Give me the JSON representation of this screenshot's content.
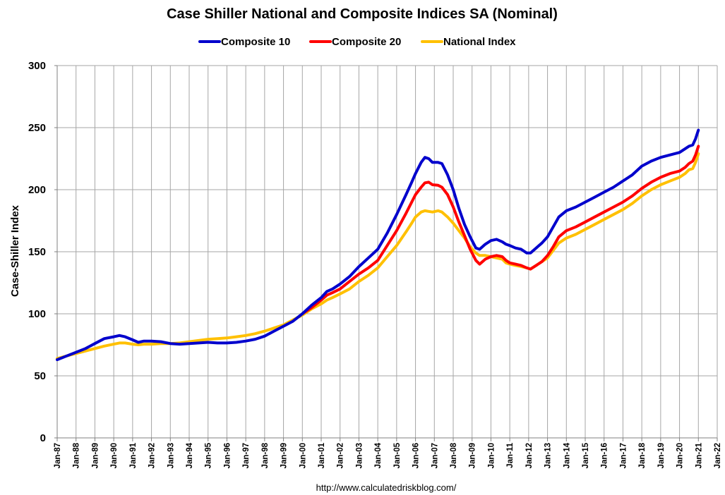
{
  "chart_data": {
    "type": "line",
    "title": "Case Shiller National and Composite Indices SA (Nominal)",
    "ylabel": "Case-Shiller Index",
    "xlabel": "",
    "source_text": "http://www.calculatedriskblog.com/",
    "ylim": [
      0,
      300
    ],
    "yticks": [
      0,
      50,
      100,
      150,
      200,
      250,
      300
    ],
    "xlim": [
      1987,
      2022
    ],
    "xticks": [
      "Jan-87",
      "Jan-88",
      "Jan-89",
      "Jan-90",
      "Jan-91",
      "Jan-92",
      "Jan-93",
      "Jan-94",
      "Jan-95",
      "Jan-96",
      "Jan-97",
      "Jan-98",
      "Jan-99",
      "Jan-00",
      "Jan-01",
      "Jan-02",
      "Jan-03",
      "Jan-04",
      "Jan-05",
      "Jan-06",
      "Jan-07",
      "Jan-08",
      "Jan-09",
      "Jan-10",
      "Jan-11",
      "Jan-12",
      "Jan-13",
      "Jan-14",
      "Jan-15",
      "Jan-16",
      "Jan-17",
      "Jan-18",
      "Jan-19",
      "Jan-20",
      "Jan-21",
      "Jan-22"
    ],
    "grid": true,
    "legend_position": "top-center",
    "series": [
      {
        "name": "Composite 10",
        "color": "#0000cc",
        "points": [
          [
            1987.0,
            63
          ],
          [
            1987.5,
            66
          ],
          [
            1988.0,
            69
          ],
          [
            1988.5,
            72
          ],
          [
            1989.0,
            76
          ],
          [
            1989.5,
            80
          ],
          [
            1990.0,
            81.5
          ],
          [
            1990.3,
            82.5
          ],
          [
            1990.6,
            81.5
          ],
          [
            1991.0,
            79
          ],
          [
            1991.3,
            77
          ],
          [
            1991.6,
            78
          ],
          [
            1992.0,
            78
          ],
          [
            1992.5,
            77.5
          ],
          [
            1993.0,
            76
          ],
          [
            1993.5,
            75.5
          ],
          [
            1994.0,
            76
          ],
          [
            1994.5,
            76.5
          ],
          [
            1995.0,
            77
          ],
          [
            1995.5,
            76.5
          ],
          [
            1996.0,
            76.5
          ],
          [
            1996.5,
            77
          ],
          [
            1997.0,
            78
          ],
          [
            1997.5,
            79.5
          ],
          [
            1998.0,
            82
          ],
          [
            1998.5,
            86
          ],
          [
            1999.0,
            90
          ],
          [
            1999.5,
            94
          ],
          [
            2000.0,
            100
          ],
          [
            2000.5,
            107
          ],
          [
            2001.0,
            113
          ],
          [
            2001.3,
            118
          ],
          [
            2001.6,
            120
          ],
          [
            2002.0,
            124
          ],
          [
            2002.5,
            130
          ],
          [
            2003.0,
            138
          ],
          [
            2003.5,
            145
          ],
          [
            2004.0,
            152
          ],
          [
            2004.5,
            165
          ],
          [
            2005.0,
            180
          ],
          [
            2005.5,
            196
          ],
          [
            2005.8,
            206
          ],
          [
            2006.0,
            213
          ],
          [
            2006.3,
            222
          ],
          [
            2006.5,
            226
          ],
          [
            2006.7,
            225
          ],
          [
            2006.9,
            222
          ],
          [
            2007.2,
            222
          ],
          [
            2007.4,
            221
          ],
          [
            2007.7,
            212
          ],
          [
            2008.0,
            200
          ],
          [
            2008.3,
            185
          ],
          [
            2008.6,
            172
          ],
          [
            2008.9,
            162
          ],
          [
            2009.2,
            153
          ],
          [
            2009.4,
            152
          ],
          [
            2009.7,
            156
          ],
          [
            2010.0,
            159
          ],
          [
            2010.3,
            160
          ],
          [
            2010.6,
            158
          ],
          [
            2010.8,
            156
          ],
          [
            2011.0,
            155
          ],
          [
            2011.3,
            153
          ],
          [
            2011.6,
            152
          ],
          [
            2011.9,
            149
          ],
          [
            2012.1,
            149
          ],
          [
            2012.4,
            153
          ],
          [
            2012.7,
            157
          ],
          [
            2013.0,
            162
          ],
          [
            2013.3,
            170
          ],
          [
            2013.6,
            178
          ],
          [
            2014.0,
            183
          ],
          [
            2014.5,
            186
          ],
          [
            2015.0,
            190
          ],
          [
            2015.5,
            194
          ],
          [
            2016.0,
            198
          ],
          [
            2016.5,
            202
          ],
          [
            2017.0,
            207
          ],
          [
            2017.5,
            212
          ],
          [
            2018.0,
            219
          ],
          [
            2018.5,
            223
          ],
          [
            2019.0,
            226
          ],
          [
            2019.5,
            228
          ],
          [
            2020.0,
            230
          ],
          [
            2020.3,
            233
          ],
          [
            2020.5,
            235
          ],
          [
            2020.7,
            236
          ],
          [
            2020.85,
            241
          ],
          [
            2021.0,
            248
          ]
        ]
      },
      {
        "name": "Composite 20",
        "color": "#ff0000",
        "points": [
          [
            2000.0,
            100
          ],
          [
            2000.5,
            105
          ],
          [
            2001.0,
            111
          ],
          [
            2001.3,
            115
          ],
          [
            2001.6,
            117
          ],
          [
            2002.0,
            120
          ],
          [
            2002.5,
            126
          ],
          [
            2003.0,
            132
          ],
          [
            2003.5,
            137
          ],
          [
            2004.0,
            143
          ],
          [
            2004.5,
            155
          ],
          [
            2005.0,
            167
          ],
          [
            2005.5,
            181
          ],
          [
            2005.8,
            190
          ],
          [
            2006.0,
            196
          ],
          [
            2006.3,
            202
          ],
          [
            2006.5,
            205.5
          ],
          [
            2006.7,
            206
          ],
          [
            2006.9,
            204
          ],
          [
            2007.2,
            203.5
          ],
          [
            2007.4,
            202
          ],
          [
            2007.7,
            196
          ],
          [
            2008.0,
            186
          ],
          [
            2008.3,
            174
          ],
          [
            2008.6,
            163
          ],
          [
            2008.9,
            152
          ],
          [
            2009.2,
            143
          ],
          [
            2009.4,
            140
          ],
          [
            2009.7,
            144
          ],
          [
            2010.0,
            146
          ],
          [
            2010.3,
            147
          ],
          [
            2010.6,
            146
          ],
          [
            2010.8,
            143
          ],
          [
            2011.0,
            141
          ],
          [
            2011.3,
            140
          ],
          [
            2011.6,
            139
          ],
          [
            2011.9,
            137
          ],
          [
            2012.1,
            136
          ],
          [
            2012.4,
            139
          ],
          [
            2012.7,
            142
          ],
          [
            2013.0,
            147
          ],
          [
            2013.3,
            154
          ],
          [
            2013.6,
            162
          ],
          [
            2014.0,
            167
          ],
          [
            2014.5,
            170
          ],
          [
            2015.0,
            174
          ],
          [
            2015.5,
            178
          ],
          [
            2016.0,
            182
          ],
          [
            2016.5,
            186
          ],
          [
            2017.0,
            190
          ],
          [
            2017.5,
            195
          ],
          [
            2018.0,
            201
          ],
          [
            2018.5,
            206
          ],
          [
            2019.0,
            210
          ],
          [
            2019.5,
            213
          ],
          [
            2020.0,
            215
          ],
          [
            2020.3,
            218
          ],
          [
            2020.5,
            221
          ],
          [
            2020.7,
            223
          ],
          [
            2020.85,
            228
          ],
          [
            2021.0,
            235
          ]
        ]
      },
      {
        "name": "National Index",
        "color": "#ffc000",
        "points": [
          [
            1987.0,
            64
          ],
          [
            1987.5,
            66
          ],
          [
            1988.0,
            68
          ],
          [
            1988.5,
            70
          ],
          [
            1989.0,
            72
          ],
          [
            1989.5,
            74
          ],
          [
            1990.0,
            75.5
          ],
          [
            1990.3,
            76.5
          ],
          [
            1990.6,
            76.5
          ],
          [
            1991.0,
            75.5
          ],
          [
            1991.3,
            75
          ],
          [
            1991.6,
            75.5
          ],
          [
            1992.0,
            75.5
          ],
          [
            1992.5,
            76
          ],
          [
            1993.0,
            76
          ],
          [
            1993.5,
            76.5
          ],
          [
            1994.0,
            77.5
          ],
          [
            1994.5,
            78.5
          ],
          [
            1995.0,
            79.5
          ],
          [
            1995.5,
            80
          ],
          [
            1996.0,
            80.5
          ],
          [
            1996.5,
            81.5
          ],
          [
            1997.0,
            82.5
          ],
          [
            1997.5,
            84
          ],
          [
            1998.0,
            86
          ],
          [
            1998.5,
            88.5
          ],
          [
            1999.0,
            91
          ],
          [
            1999.5,
            95
          ],
          [
            2000.0,
            99
          ],
          [
            2000.5,
            104
          ],
          [
            2001.0,
            108
          ],
          [
            2001.3,
            111
          ],
          [
            2001.6,
            113
          ],
          [
            2002.0,
            116
          ],
          [
            2002.5,
            120
          ],
          [
            2003.0,
            126
          ],
          [
            2003.5,
            131
          ],
          [
            2004.0,
            137
          ],
          [
            2004.5,
            146
          ],
          [
            2005.0,
            155
          ],
          [
            2005.5,
            166
          ],
          [
            2005.8,
            173
          ],
          [
            2006.0,
            178
          ],
          [
            2006.3,
            182
          ],
          [
            2006.5,
            183
          ],
          [
            2006.7,
            182.5
          ],
          [
            2006.9,
            182
          ],
          [
            2007.2,
            183
          ],
          [
            2007.4,
            182
          ],
          [
            2007.7,
            178
          ],
          [
            2008.0,
            173
          ],
          [
            2008.3,
            167
          ],
          [
            2008.6,
            161
          ],
          [
            2008.9,
            154
          ],
          [
            2009.2,
            149
          ],
          [
            2009.4,
            147
          ],
          [
            2009.7,
            147
          ],
          [
            2010.0,
            146
          ],
          [
            2010.3,
            145
          ],
          [
            2010.6,
            144
          ],
          [
            2010.8,
            141
          ],
          [
            2011.0,
            140
          ],
          [
            2011.3,
            139
          ],
          [
            2011.6,
            138
          ],
          [
            2011.9,
            137
          ],
          [
            2012.1,
            136
          ],
          [
            2012.4,
            139
          ],
          [
            2012.7,
            142
          ],
          [
            2013.0,
            145
          ],
          [
            2013.3,
            151
          ],
          [
            2013.6,
            157
          ],
          [
            2014.0,
            161
          ],
          [
            2014.5,
            164
          ],
          [
            2015.0,
            168
          ],
          [
            2015.5,
            172
          ],
          [
            2016.0,
            176
          ],
          [
            2016.5,
            180
          ],
          [
            2017.0,
            184
          ],
          [
            2017.5,
            189
          ],
          [
            2018.0,
            195
          ],
          [
            2018.5,
            200
          ],
          [
            2019.0,
            204
          ],
          [
            2019.5,
            207
          ],
          [
            2020.0,
            210
          ],
          [
            2020.3,
            213
          ],
          [
            2020.5,
            216
          ],
          [
            2020.7,
            217
          ],
          [
            2020.85,
            222
          ],
          [
            2021.0,
            229
          ]
        ]
      }
    ]
  }
}
